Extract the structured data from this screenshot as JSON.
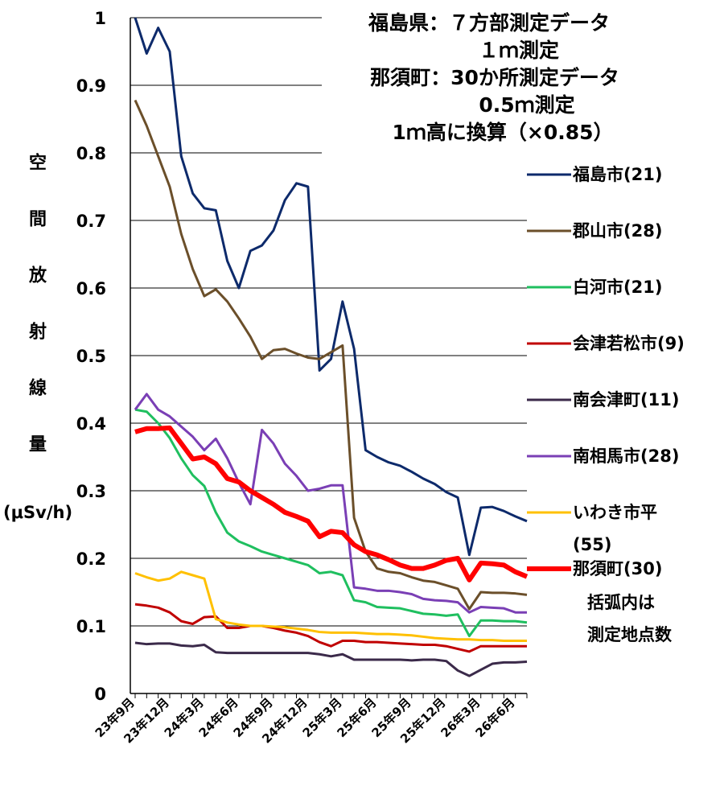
{
  "chart_data": {
    "type": "line",
    "annotation": [
      "福島県：７方部測定データ",
      "１ｍ測定",
      "那須町：30か所測定データ",
      "0.5ｍ測定",
      "1ｍ高に換算（×0.85）"
    ],
    "ylabel": "空間放射線量",
    "yunit": "(μSv/h)",
    "note": [
      "括弧内は",
      "測定地点数"
    ],
    "categories": [
      "23年9月",
      null,
      null,
      "23年12月",
      null,
      null,
      "24年3月",
      null,
      null,
      "24年6月",
      null,
      null,
      "24年9月",
      null,
      null,
      "24年12月",
      null,
      null,
      "25年3月",
      null,
      null,
      "25年6月",
      null,
      null,
      "25年9月",
      null,
      null,
      "25年12月",
      null,
      null,
      "26年3月",
      null,
      null,
      "26年6月",
      null
    ],
    "ylim": [
      0,
      1
    ],
    "yticks": [
      0,
      0.1,
      0.2,
      0.3,
      0.4,
      0.5,
      0.6,
      0.7,
      0.8,
      0.9,
      1
    ],
    "grid": true,
    "series": [
      {
        "name": "福島市(21)",
        "color": "#0d2a6b",
        "line_width": 3,
        "values": [
          1.0,
          0.947,
          0.985,
          0.95,
          0.795,
          0.74,
          0.718,
          0.715,
          0.64,
          0.6,
          0.655,
          0.663,
          0.685,
          0.73,
          0.755,
          0.75,
          0.478,
          0.495,
          0.58,
          0.51,
          0.36,
          0.35,
          0.342,
          0.337,
          0.328,
          0.318,
          0.31,
          0.298,
          0.29,
          0.205,
          0.275,
          0.276,
          0.27,
          0.262,
          0.255
        ]
      },
      {
        "name": "郡山市(28)",
        "color": "#6b4f2a",
        "line_width": 3,
        "values": [
          0.878,
          0.84,
          0.795,
          0.75,
          0.68,
          0.628,
          0.588,
          0.598,
          0.58,
          0.555,
          0.528,
          0.495,
          0.508,
          0.51,
          0.503,
          0.497,
          0.495,
          0.505,
          0.515,
          0.26,
          0.21,
          0.185,
          0.18,
          0.178,
          0.172,
          0.167,
          0.165,
          0.16,
          0.155,
          0.125,
          0.15,
          0.149,
          0.149,
          0.148,
          0.146
        ]
      },
      {
        "name": "白河市(21)",
        "color": "#1fbf5f",
        "line_width": 3,
        "values": [
          0.42,
          0.417,
          0.4,
          0.378,
          0.348,
          0.323,
          0.307,
          0.268,
          0.238,
          0.225,
          0.218,
          0.21,
          0.205,
          0.2,
          0.195,
          0.19,
          0.178,
          0.18,
          0.175,
          0.138,
          0.135,
          0.128,
          0.127,
          0.126,
          0.122,
          0.118,
          0.117,
          0.115,
          0.117,
          0.085,
          0.108,
          0.108,
          0.107,
          0.107,
          0.105
        ]
      },
      {
        "name": "会津若松市(9)",
        "color": "#c00000",
        "line_width": 3,
        "values": [
          0.132,
          0.13,
          0.127,
          0.12,
          0.107,
          0.103,
          0.113,
          0.114,
          0.097,
          0.097,
          0.1,
          0.1,
          0.097,
          0.093,
          0.09,
          0.085,
          0.076,
          0.07,
          0.078,
          0.078,
          0.076,
          0.076,
          0.075,
          0.074,
          0.073,
          0.072,
          0.072,
          0.07,
          0.066,
          0.062,
          0.07,
          0.07,
          0.07,
          0.07,
          0.07
        ]
      },
      {
        "name": "南会津町(11)",
        "color": "#3b2a4a",
        "line_width": 3,
        "values": [
          0.075,
          0.073,
          0.074,
          0.074,
          0.071,
          0.07,
          0.072,
          0.061,
          0.06,
          0.06,
          0.06,
          0.06,
          0.06,
          0.06,
          0.06,
          0.06,
          0.058,
          0.055,
          0.058,
          0.05,
          0.05,
          0.05,
          0.05,
          0.05,
          0.049,
          0.05,
          0.05,
          0.048,
          0.034,
          0.026,
          0.035,
          0.044,
          0.046,
          0.046,
          0.047
        ]
      },
      {
        "name": "南相馬市(28)",
        "color": "#7a3fb5",
        "line_width": 3,
        "values": [
          0.42,
          0.443,
          0.42,
          0.41,
          0.395,
          0.38,
          0.36,
          0.377,
          0.348,
          0.312,
          0.28,
          0.39,
          0.37,
          0.34,
          0.322,
          0.3,
          0.303,
          0.308,
          0.308,
          0.157,
          0.155,
          0.152,
          0.152,
          0.15,
          0.147,
          0.14,
          0.138,
          0.137,
          0.135,
          0.12,
          0.128,
          0.127,
          0.126,
          0.12,
          0.12
        ]
      },
      {
        "name": "いわき市平(55)",
        "color": "#ffc000",
        "line_width": 3,
        "values": [
          0.178,
          0.172,
          0.167,
          0.17,
          0.18,
          0.175,
          0.17,
          0.11,
          0.105,
          0.102,
          0.1,
          0.1,
          0.099,
          0.098,
          0.096,
          0.094,
          0.091,
          0.09,
          0.09,
          0.09,
          0.089,
          0.088,
          0.088,
          0.087,
          0.086,
          0.084,
          0.082,
          0.081,
          0.08,
          0.08,
          0.079,
          0.079,
          0.078,
          0.078,
          0.078
        ]
      },
      {
        "name": "那須町(30)",
        "color": "#ff0000",
        "line_width": 6,
        "values": [
          0.387,
          0.392,
          0.392,
          0.393,
          0.37,
          0.347,
          0.35,
          0.34,
          0.318,
          0.313,
          0.3,
          0.29,
          0.28,
          0.268,
          0.262,
          0.255,
          0.232,
          0.24,
          0.238,
          0.22,
          0.21,
          0.205,
          0.198,
          0.19,
          0.185,
          0.185,
          0.19,
          0.197,
          0.2,
          0.168,
          0.193,
          0.192,
          0.19,
          0.18,
          0.173
        ]
      }
    ]
  }
}
